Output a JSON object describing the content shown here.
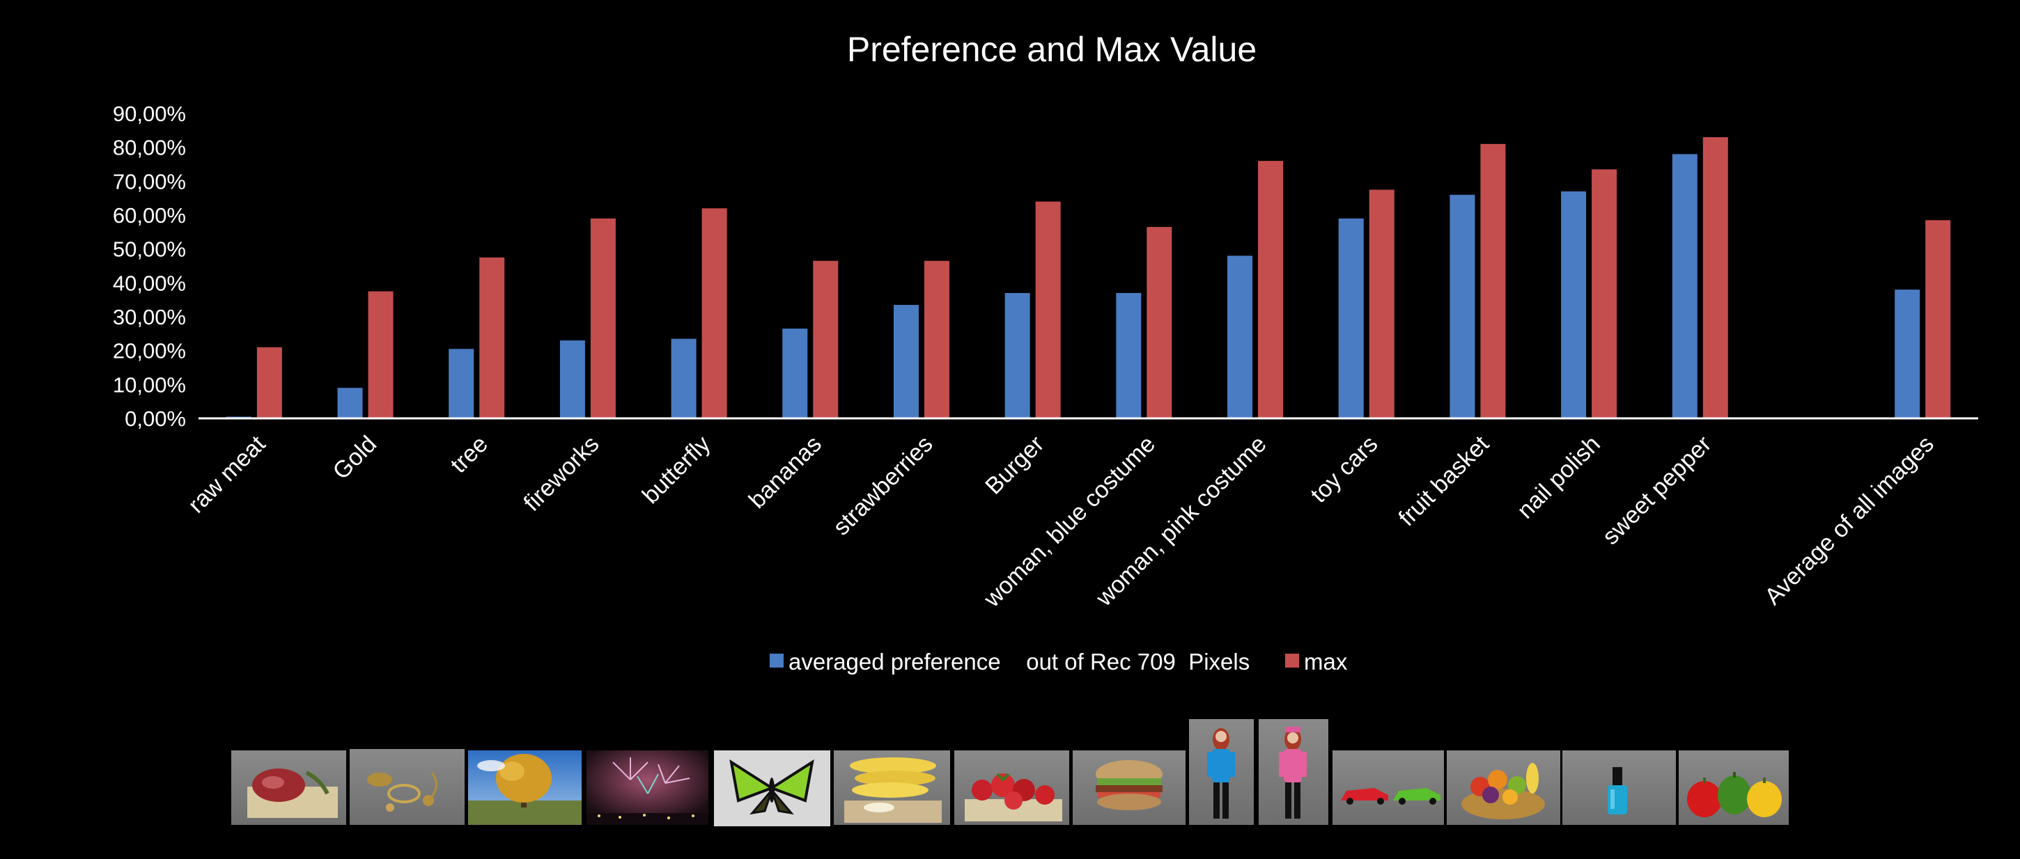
{
  "chart_data": {
    "type": "bar",
    "title": "Preference and Max Value",
    "xlabel": "",
    "ylabel": "",
    "ylim": [
      0,
      90
    ],
    "y_ticks": [
      "0,00%",
      "10,00%",
      "20,00%",
      "30,00%",
      "40,00%",
      "50,00%",
      "60,00%",
      "70,00%",
      "80,00%",
      "90,00%"
    ],
    "grid": false,
    "legend_position": "bottom",
    "categories": [
      "raw meat",
      "Gold",
      "tree",
      "fireworks",
      "butterfly",
      "bananas",
      "strawberries",
      "Burger",
      "woman, blue costume",
      "woman, pink costume",
      "toy cars",
      "fruit basket",
      "nail polish",
      "sweet pepper",
      "",
      "Average of all images"
    ],
    "series": [
      {
        "name": "averaged preference    out of Rec 709  Pixels",
        "color": "#4a7cc4",
        "values": [
          0.5,
          9,
          20.5,
          23,
          23.5,
          26.5,
          33.5,
          37,
          37,
          48,
          59,
          66,
          67,
          78,
          null,
          38
        ]
      },
      {
        "name": "max",
        "color": "#c44e4e",
        "values": [
          21,
          37.5,
          47.5,
          59,
          62,
          46.5,
          46.5,
          64,
          56.5,
          76,
          67.5,
          81,
          73.5,
          83,
          null,
          58.5
        ]
      }
    ]
  },
  "thumbnails": [
    {
      "name": "raw meat",
      "icon": "raw-meat-photo"
    },
    {
      "name": "Gold",
      "icon": "gold-photo"
    },
    {
      "name": "tree",
      "icon": "tree-photo"
    },
    {
      "name": "fireworks",
      "icon": "fireworks-photo"
    },
    {
      "name": "butterfly",
      "icon": "butterfly-photo"
    },
    {
      "name": "bananas",
      "icon": "bananas-photo"
    },
    {
      "name": "strawberries",
      "icon": "strawberries-photo"
    },
    {
      "name": "Burger",
      "icon": "burger-photo"
    },
    {
      "name": "woman, blue costume",
      "icon": "woman-blue-photo"
    },
    {
      "name": "woman, pink costume",
      "icon": "woman-pink-photo"
    },
    {
      "name": "toy cars",
      "icon": "toy-cars-photo"
    },
    {
      "name": "fruit basket",
      "icon": "fruit-basket-photo"
    },
    {
      "name": "nail polish",
      "icon": "nail-polish-photo"
    },
    {
      "name": "sweet pepper",
      "icon": "sweet-pepper-photo"
    }
  ]
}
